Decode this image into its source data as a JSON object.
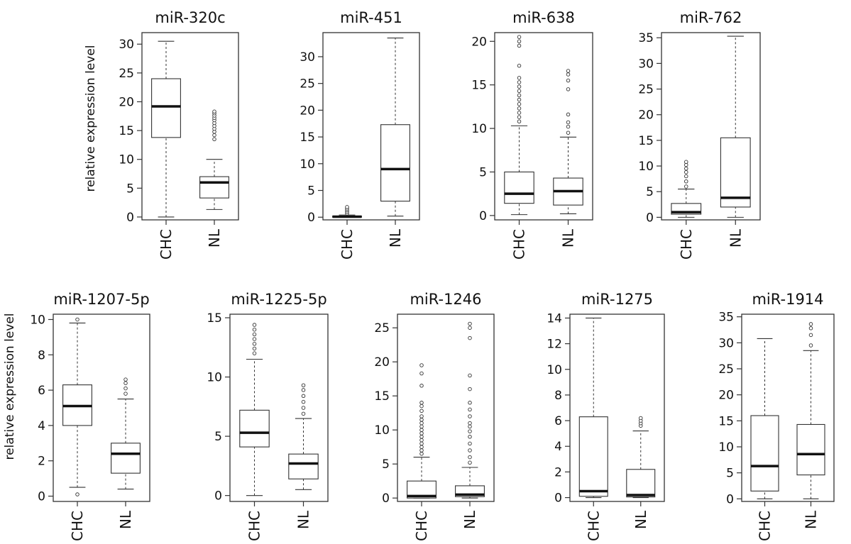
{
  "y_axis_label": "relative expression level",
  "chart_data": [
    {
      "type": "box",
      "title": "miR-320c",
      "categories": [
        "CHC",
        "NL"
      ],
      "ylim": [
        -0.5,
        32
      ],
      "yticks": [
        0,
        5,
        10,
        15,
        20,
        25,
        30
      ],
      "boxes": [
        {
          "name": "CHC",
          "whisker_low": 0,
          "q1": 13.8,
          "median": 19.2,
          "q3": 24,
          "whisker_high": 30.5,
          "outliers": []
        },
        {
          "name": "NL",
          "whisker_low": 1.3,
          "q1": 3.3,
          "median": 6,
          "q3": 7,
          "whisker_high": 10,
          "outliers": [
            13.5,
            14.2,
            14.8,
            15.3,
            15.8,
            16.3,
            16.8,
            17.2,
            17.6,
            18,
            18.3
          ]
        }
      ]
    },
    {
      "type": "box",
      "title": "miR-451",
      "categories": [
        "CHC",
        "NL"
      ],
      "ylim": [
        -0.5,
        34.5
      ],
      "yticks": [
        0,
        5,
        10,
        15,
        20,
        25,
        30
      ],
      "boxes": [
        {
          "name": "CHC",
          "whisker_low": 0,
          "q1": 0,
          "median": 0.1,
          "q3": 0.2,
          "whisker_high": 0.4,
          "outliers": [
            0.7,
            1.0,
            1.3,
            1.6,
            1.9
          ]
        },
        {
          "name": "NL",
          "whisker_low": 0.2,
          "q1": 3,
          "median": 9,
          "q3": 17.3,
          "whisker_high": 33.5,
          "outliers": []
        }
      ]
    },
    {
      "type": "box",
      "title": "miR-638",
      "categories": [
        "CHC",
        "NL"
      ],
      "ylim": [
        -0.5,
        21
      ],
      "yticks": [
        0,
        5,
        10,
        15,
        20
      ],
      "boxes": [
        {
          "name": "CHC",
          "whisker_low": 0.1,
          "q1": 1.4,
          "median": 2.5,
          "q3": 5,
          "whisker_high": 10.3,
          "outliers": [
            10.8,
            11.3,
            11.8,
            12.3,
            12.8,
            13.3,
            13.8,
            14.3,
            14.8,
            15.3,
            15.8,
            17.2,
            19.5,
            20,
            20.5
          ]
        },
        {
          "name": "NL",
          "whisker_low": 0.2,
          "q1": 1.2,
          "median": 2.8,
          "q3": 4.3,
          "whisker_high": 9,
          "outliers": [
            9.5,
            10.2,
            10.7,
            11.6,
            14.5,
            15.5,
            16.2,
            16.6
          ]
        }
      ]
    },
    {
      "type": "box",
      "title": "miR-762",
      "categories": [
        "CHC",
        "NL"
      ],
      "ylim": [
        -0.5,
        36
      ],
      "yticks": [
        0,
        5,
        10,
        15,
        20,
        25,
        30,
        35
      ],
      "boxes": [
        {
          "name": "CHC",
          "whisker_low": 0,
          "q1": 0.6,
          "median": 1,
          "q3": 2.7,
          "whisker_high": 5.5,
          "outliers": [
            6,
            7,
            8,
            8.8,
            9.5,
            10.2,
            10.8
          ]
        },
        {
          "name": "NL",
          "whisker_low": 0,
          "q1": 2,
          "median": 3.8,
          "q3": 15.5,
          "whisker_high": 35.3,
          "outliers": []
        }
      ]
    },
    {
      "type": "box",
      "title": "miR-1207-5p",
      "categories": [
        "CHC",
        "NL"
      ],
      "ylim": [
        -0.3,
        10.3
      ],
      "yticks": [
        0,
        2,
        4,
        6,
        8,
        10
      ],
      "boxes": [
        {
          "name": "CHC",
          "whisker_low": 0.5,
          "q1": 4,
          "median": 5.1,
          "q3": 6.3,
          "whisker_high": 9.8,
          "outliers": [
            10,
            0.1
          ]
        },
        {
          "name": "NL",
          "whisker_low": 0.4,
          "q1": 1.3,
          "median": 2.4,
          "q3": 3,
          "whisker_high": 5.5,
          "outliers": [
            5.8,
            6.1,
            6.4,
            6.6
          ]
        }
      ]
    },
    {
      "type": "box",
      "title": "miR-1225-5p",
      "categories": [
        "CHC",
        "NL"
      ],
      "ylim": [
        -0.5,
        15.3
      ],
      "yticks": [
        0,
        5,
        10,
        15
      ],
      "boxes": [
        {
          "name": "CHC",
          "whisker_low": 0,
          "q1": 4.1,
          "median": 5.3,
          "q3": 7.2,
          "whisker_high": 11.5,
          "outliers": [
            12,
            12.4,
            12.8,
            13.2,
            13.6,
            14,
            14.4
          ]
        },
        {
          "name": "NL",
          "whisker_low": 0.5,
          "q1": 1.4,
          "median": 2.7,
          "q3": 3.5,
          "whisker_high": 6.5,
          "outliers": [
            6.9,
            7.4,
            7.9,
            8.4,
            8.9,
            9.3
          ]
        }
      ]
    },
    {
      "type": "box",
      "title": "miR-1246",
      "categories": [
        "CHC",
        "NL"
      ],
      "ylim": [
        -0.5,
        27
      ],
      "yticks": [
        0,
        5,
        10,
        15,
        20,
        25
      ],
      "boxes": [
        {
          "name": "CHC",
          "whisker_low": 0,
          "q1": 0,
          "median": 0.3,
          "q3": 2.5,
          "whisker_high": 6,
          "outliers": [
            6.5,
            7,
            7.5,
            8,
            8.5,
            9,
            9.5,
            10,
            10.5,
            11,
            11.5,
            12,
            12.8,
            13.5,
            14,
            16.5,
            18.3,
            19.5
          ]
        },
        {
          "name": "NL",
          "whisker_low": 0,
          "q1": 0.2,
          "median": 0.5,
          "q3": 1.8,
          "whisker_high": 4.5,
          "outliers": [
            5.2,
            6,
            7,
            8,
            9,
            9.8,
            10.5,
            11,
            12,
            13,
            14,
            16,
            18,
            23.5,
            25,
            25.6
          ]
        }
      ]
    },
    {
      "type": "box",
      "title": "miR-1275",
      "categories": [
        "CHC",
        "NL"
      ],
      "ylim": [
        -0.3,
        14.3
      ],
      "yticks": [
        0,
        2,
        4,
        6,
        8,
        10,
        12,
        14
      ],
      "boxes": [
        {
          "name": "CHC",
          "whisker_low": 0,
          "q1": 0.1,
          "median": 0.5,
          "q3": 6.3,
          "whisker_high": 14,
          "outliers": []
        },
        {
          "name": "NL",
          "whisker_low": 0,
          "q1": 0.05,
          "median": 0.2,
          "q3": 2.2,
          "whisker_high": 5.2,
          "outliers": [
            5.6,
            5.8,
            6,
            6.2
          ]
        }
      ]
    },
    {
      "type": "box",
      "title": "miR-1914",
      "categories": [
        "CHC",
        "NL"
      ],
      "ylim": [
        -0.5,
        35.5
      ],
      "yticks": [
        0,
        5,
        10,
        15,
        20,
        25,
        30,
        35
      ],
      "boxes": [
        {
          "name": "CHC",
          "whisker_low": 0,
          "q1": 1.5,
          "median": 6.3,
          "q3": 16,
          "whisker_high": 30.8,
          "outliers": []
        },
        {
          "name": "NL",
          "whisker_low": 0,
          "q1": 4.6,
          "median": 8.6,
          "q3": 14.3,
          "whisker_high": 28.5,
          "outliers": [
            29.5,
            31.5,
            32.8,
            33.6
          ]
        }
      ]
    }
  ]
}
